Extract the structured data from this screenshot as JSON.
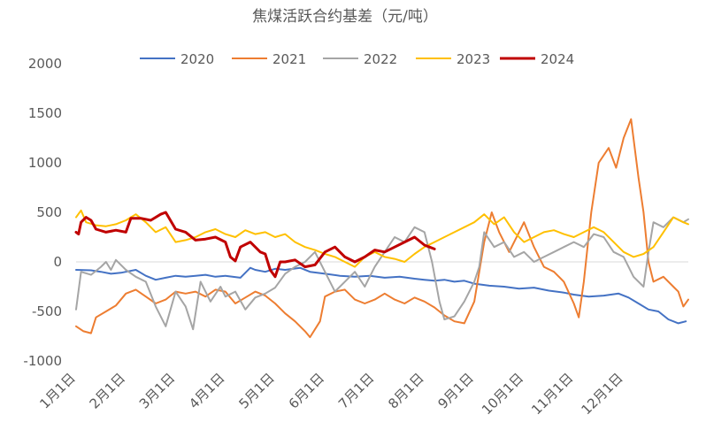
{
  "chart_data": {
    "type": "line",
    "title": "焦煤活跃合约基差（元/吨）",
    "xlabel": "",
    "ylabel": "",
    "ylim": [
      -1000,
      2000
    ],
    "yticks": [
      -1000,
      -500,
      0,
      500,
      1000,
      1500,
      2000
    ],
    "x_categories": [
      "1月1日",
      "2月1日",
      "3月1日",
      "4月1日",
      "5月1日",
      "6月1日",
      "7月1日",
      "8月1日",
      "9月1日",
      "10月1日",
      "11月1日",
      "12月1日"
    ],
    "grid": false,
    "legend_position": "top",
    "series": [
      {
        "name": "2020",
        "color": "#4472C4",
        "width": 2,
        "points": [
          [
            0,
            -80
          ],
          [
            0.3,
            -85
          ],
          [
            0.5,
            -100
          ],
          [
            0.7,
            -120
          ],
          [
            0.9,
            -110
          ],
          [
            1.0,
            -100
          ],
          [
            1.2,
            -80
          ],
          [
            1.4,
            -140
          ],
          [
            1.6,
            -180
          ],
          [
            1.8,
            -160
          ],
          [
            2.0,
            -140
          ],
          [
            2.2,
            -150
          ],
          [
            2.4,
            -140
          ],
          [
            2.6,
            -130
          ],
          [
            2.8,
            -150
          ],
          [
            3.0,
            -140
          ],
          [
            3.3,
            -160
          ],
          [
            3.5,
            -60
          ],
          [
            3.6,
            -80
          ],
          [
            3.8,
            -100
          ],
          [
            4.0,
            -70
          ],
          [
            4.2,
            -80
          ],
          [
            4.5,
            -60
          ],
          [
            4.7,
            -100
          ],
          [
            5.0,
            -120
          ],
          [
            5.3,
            -140
          ],
          [
            5.6,
            -150
          ],
          [
            5.9,
            -140
          ],
          [
            6.2,
            -160
          ],
          [
            6.5,
            -150
          ],
          [
            6.8,
            -170
          ],
          [
            7.0,
            -180
          ],
          [
            7.2,
            -190
          ],
          [
            7.4,
            -180
          ],
          [
            7.6,
            -200
          ],
          [
            7.8,
            -190
          ],
          [
            8.0,
            -220
          ],
          [
            8.3,
            -240
          ],
          [
            8.6,
            -250
          ],
          [
            8.9,
            -270
          ],
          [
            9.2,
            -260
          ],
          [
            9.5,
            -290
          ],
          [
            9.8,
            -310
          ],
          [
            10.0,
            -330
          ],
          [
            10.3,
            -350
          ],
          [
            10.6,
            -340
          ],
          [
            10.9,
            -320
          ],
          [
            11.1,
            -360
          ],
          [
            11.3,
            -420
          ],
          [
            11.5,
            -480
          ],
          [
            11.7,
            -500
          ],
          [
            11.9,
            -580
          ],
          [
            12.1,
            -620
          ],
          [
            12.25,
            -600
          ]
        ]
      },
      {
        "name": "2021",
        "color": "#ED7D31",
        "width": 2,
        "points": [
          [
            0,
            -650
          ],
          [
            0.15,
            -700
          ],
          [
            0.3,
            -720
          ],
          [
            0.4,
            -560
          ],
          [
            0.6,
            -500
          ],
          [
            0.8,
            -440
          ],
          [
            1.0,
            -320
          ],
          [
            1.2,
            -280
          ],
          [
            1.4,
            -350
          ],
          [
            1.6,
            -420
          ],
          [
            1.8,
            -380
          ],
          [
            2.0,
            -300
          ],
          [
            2.2,
            -320
          ],
          [
            2.4,
            -300
          ],
          [
            2.6,
            -350
          ],
          [
            2.8,
            -280
          ],
          [
            3.0,
            -300
          ],
          [
            3.2,
            -420
          ],
          [
            3.4,
            -360
          ],
          [
            3.6,
            -300
          ],
          [
            3.8,
            -340
          ],
          [
            4.0,
            -420
          ],
          [
            4.2,
            -520
          ],
          [
            4.4,
            -600
          ],
          [
            4.6,
            -700
          ],
          [
            4.7,
            -760
          ],
          [
            4.9,
            -600
          ],
          [
            5.0,
            -350
          ],
          [
            5.2,
            -300
          ],
          [
            5.4,
            -280
          ],
          [
            5.6,
            -380
          ],
          [
            5.8,
            -420
          ],
          [
            6.0,
            -380
          ],
          [
            6.2,
            -320
          ],
          [
            6.4,
            -380
          ],
          [
            6.6,
            -420
          ],
          [
            6.8,
            -360
          ],
          [
            7.0,
            -400
          ],
          [
            7.2,
            -460
          ],
          [
            7.4,
            -540
          ],
          [
            7.6,
            -600
          ],
          [
            7.8,
            -620
          ],
          [
            8.0,
            -400
          ],
          [
            8.1,
            -100
          ],
          [
            8.2,
            200
          ],
          [
            8.35,
            500
          ],
          [
            8.5,
            300
          ],
          [
            8.7,
            100
          ],
          [
            8.9,
            300
          ],
          [
            9.0,
            400
          ],
          [
            9.2,
            150
          ],
          [
            9.4,
            -50
          ],
          [
            9.6,
            -100
          ],
          [
            9.8,
            -200
          ],
          [
            10.0,
            -420
          ],
          [
            10.1,
            -560
          ],
          [
            10.2,
            -200
          ],
          [
            10.35,
            500
          ],
          [
            10.5,
            1000
          ],
          [
            10.7,
            1150
          ],
          [
            10.85,
            950
          ],
          [
            11.0,
            1250
          ],
          [
            11.15,
            1440
          ],
          [
            11.3,
            850
          ],
          [
            11.4,
            500
          ],
          [
            11.5,
            0
          ],
          [
            11.6,
            -200
          ],
          [
            11.8,
            -150
          ],
          [
            12.0,
            -250
          ],
          [
            12.1,
            -300
          ],
          [
            12.2,
            -450
          ],
          [
            12.3,
            -380
          ]
        ]
      },
      {
        "name": "2022",
        "color": "#A5A5A5",
        "width": 2,
        "points": [
          [
            0,
            -480
          ],
          [
            0.1,
            -100
          ],
          [
            0.3,
            -130
          ],
          [
            0.5,
            -50
          ],
          [
            0.6,
            0
          ],
          [
            0.7,
            -80
          ],
          [
            0.8,
            20
          ],
          [
            1.0,
            -80
          ],
          [
            1.2,
            -150
          ],
          [
            1.4,
            -200
          ],
          [
            1.6,
            -450
          ],
          [
            1.8,
            -650
          ],
          [
            2.0,
            -300
          ],
          [
            2.2,
            -450
          ],
          [
            2.35,
            -680
          ],
          [
            2.5,
            -200
          ],
          [
            2.7,
            -400
          ],
          [
            2.9,
            -250
          ],
          [
            3.0,
            -350
          ],
          [
            3.2,
            -300
          ],
          [
            3.4,
            -480
          ],
          [
            3.6,
            -360
          ],
          [
            3.8,
            -320
          ],
          [
            4.0,
            -260
          ],
          [
            4.2,
            -120
          ],
          [
            4.4,
            -50
          ],
          [
            4.6,
            0
          ],
          [
            4.8,
            100
          ],
          [
            5.0,
            -100
          ],
          [
            5.2,
            -300
          ],
          [
            5.4,
            -200
          ],
          [
            5.6,
            -100
          ],
          [
            5.8,
            -250
          ],
          [
            6.0,
            -50
          ],
          [
            6.2,
            100
          ],
          [
            6.4,
            250
          ],
          [
            6.6,
            200
          ],
          [
            6.8,
            350
          ],
          [
            7.0,
            300
          ],
          [
            7.15,
            0
          ],
          [
            7.3,
            -400
          ],
          [
            7.4,
            -580
          ],
          [
            7.6,
            -550
          ],
          [
            7.8,
            -400
          ],
          [
            8.0,
            -200
          ],
          [
            8.1,
            -50
          ],
          [
            8.2,
            300
          ],
          [
            8.4,
            150
          ],
          [
            8.6,
            200
          ],
          [
            8.8,
            50
          ],
          [
            9.0,
            100
          ],
          [
            9.2,
            0
          ],
          [
            9.4,
            50
          ],
          [
            9.6,
            100
          ],
          [
            9.8,
            150
          ],
          [
            10.0,
            200
          ],
          [
            10.2,
            150
          ],
          [
            10.4,
            280
          ],
          [
            10.6,
            250
          ],
          [
            10.8,
            100
          ],
          [
            11.0,
            50
          ],
          [
            11.2,
            -150
          ],
          [
            11.4,
            -250
          ],
          [
            11.5,
            100
          ],
          [
            11.6,
            400
          ],
          [
            11.8,
            350
          ],
          [
            12.0,
            450
          ],
          [
            12.2,
            400
          ],
          [
            12.3,
            430
          ]
        ]
      },
      {
        "name": "2023",
        "color": "#FFC000",
        "width": 2,
        "points": [
          [
            0,
            450
          ],
          [
            0.1,
            520
          ],
          [
            0.2,
            400
          ],
          [
            0.4,
            370
          ],
          [
            0.6,
            360
          ],
          [
            0.8,
            380
          ],
          [
            1.0,
            420
          ],
          [
            1.2,
            480
          ],
          [
            1.4,
            400
          ],
          [
            1.6,
            300
          ],
          [
            1.8,
            350
          ],
          [
            2.0,
            200
          ],
          [
            2.2,
            220
          ],
          [
            2.4,
            250
          ],
          [
            2.6,
            300
          ],
          [
            2.8,
            330
          ],
          [
            3.0,
            280
          ],
          [
            3.2,
            250
          ],
          [
            3.4,
            320
          ],
          [
            3.6,
            280
          ],
          [
            3.8,
            300
          ],
          [
            4.0,
            250
          ],
          [
            4.2,
            280
          ],
          [
            4.4,
            200
          ],
          [
            4.6,
            150
          ],
          [
            4.8,
            120
          ],
          [
            5.0,
            80
          ],
          [
            5.2,
            50
          ],
          [
            5.4,
            0
          ],
          [
            5.6,
            -50
          ],
          [
            5.8,
            50
          ],
          [
            6.0,
            100
          ],
          [
            6.2,
            50
          ],
          [
            6.4,
            30
          ],
          [
            6.6,
            0
          ],
          [
            6.8,
            80
          ],
          [
            7.0,
            150
          ],
          [
            7.2,
            200
          ],
          [
            7.4,
            250
          ],
          [
            7.6,
            300
          ],
          [
            7.8,
            350
          ],
          [
            8.0,
            400
          ],
          [
            8.2,
            480
          ],
          [
            8.4,
            380
          ],
          [
            8.6,
            450
          ],
          [
            8.8,
            300
          ],
          [
            9.0,
            200
          ],
          [
            9.2,
            250
          ],
          [
            9.4,
            300
          ],
          [
            9.6,
            320
          ],
          [
            9.8,
            280
          ],
          [
            10.0,
            250
          ],
          [
            10.2,
            300
          ],
          [
            10.4,
            350
          ],
          [
            10.6,
            300
          ],
          [
            10.8,
            200
          ],
          [
            11.0,
            100
          ],
          [
            11.2,
            50
          ],
          [
            11.4,
            80
          ],
          [
            11.6,
            150
          ],
          [
            11.8,
            300
          ],
          [
            12.0,
            450
          ],
          [
            12.2,
            400
          ],
          [
            12.3,
            380
          ]
        ]
      },
      {
        "name": "2024",
        "color": "#C00000",
        "width": 3,
        "points": [
          [
            0,
            300
          ],
          [
            0.05,
            280
          ],
          [
            0.1,
            400
          ],
          [
            0.2,
            450
          ],
          [
            0.3,
            420
          ],
          [
            0.4,
            330
          ],
          [
            0.6,
            300
          ],
          [
            0.8,
            320
          ],
          [
            1.0,
            300
          ],
          [
            1.1,
            440
          ],
          [
            1.3,
            440
          ],
          [
            1.5,
            420
          ],
          [
            1.7,
            480
          ],
          [
            1.8,
            500
          ],
          [
            2.0,
            330
          ],
          [
            2.2,
            300
          ],
          [
            2.4,
            220
          ],
          [
            2.6,
            230
          ],
          [
            2.8,
            250
          ],
          [
            3.0,
            200
          ],
          [
            3.1,
            50
          ],
          [
            3.2,
            10
          ],
          [
            3.3,
            150
          ],
          [
            3.5,
            200
          ],
          [
            3.7,
            100
          ],
          [
            3.8,
            80
          ],
          [
            3.9,
            -80
          ],
          [
            4.0,
            -150
          ],
          [
            4.1,
            0
          ],
          [
            4.2,
            0
          ],
          [
            4.4,
            20
          ],
          [
            4.6,
            -50
          ],
          [
            4.8,
            -30
          ],
          [
            5.0,
            100
          ],
          [
            5.2,
            150
          ],
          [
            5.4,
            50
          ],
          [
            5.6,
            0
          ],
          [
            5.8,
            50
          ],
          [
            6.0,
            120
          ],
          [
            6.2,
            100
          ],
          [
            6.4,
            150
          ],
          [
            6.6,
            200
          ],
          [
            6.8,
            250
          ],
          [
            7.0,
            170
          ],
          [
            7.1,
            150
          ],
          [
            7.2,
            130
          ]
        ]
      }
    ]
  }
}
